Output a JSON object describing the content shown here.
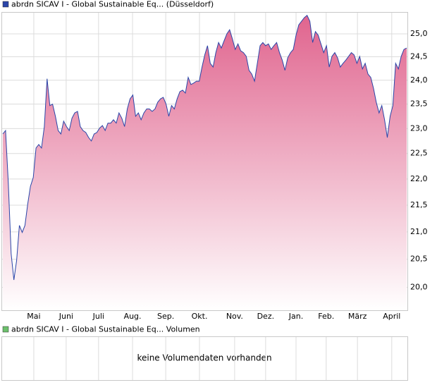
{
  "chart_data": {
    "type": "area",
    "log_scale": true,
    "grid": true,
    "fill_color": "#e0648e",
    "series": [
      {
        "name": "abrdn SICAV I - Global Sustainable Eq... (Düsseldorf)",
        "color": "#2a45a8",
        "values": [
          22.89,
          22.96,
          21.92,
          20.6,
          20.13,
          20.48,
          21.12,
          20.99,
          21.12,
          21.52,
          21.86,
          22.03,
          22.61,
          22.68,
          22.61,
          23.04,
          24.03,
          23.47,
          23.5,
          23.25,
          22.96,
          22.89,
          23.15,
          23.04,
          22.96,
          23.21,
          23.32,
          23.35,
          23.04,
          22.96,
          22.92,
          22.82,
          22.75,
          22.89,
          22.92,
          23.01,
          23.06,
          22.96,
          23.11,
          23.11,
          23.18,
          23.11,
          23.32,
          23.21,
          23.04,
          23.4,
          23.61,
          23.69,
          23.25,
          23.32,
          23.18,
          23.32,
          23.4,
          23.4,
          23.35,
          23.4,
          23.54,
          23.61,
          23.64,
          23.5,
          23.25,
          23.47,
          23.4,
          23.61,
          23.76,
          23.79,
          23.73,
          24.06,
          23.91,
          23.94,
          23.98,
          23.98,
          24.28,
          24.54,
          24.74,
          24.36,
          24.28,
          24.59,
          24.81,
          24.69,
          24.85,
          25.0,
          25.09,
          24.89,
          24.66,
          24.78,
          24.63,
          24.59,
          24.51,
          24.21,
          24.13,
          23.98,
          24.36,
          24.74,
          24.81,
          24.74,
          24.78,
          24.66,
          24.74,
          24.81,
          24.59,
          24.43,
          24.21,
          24.48,
          24.59,
          24.66,
          24.97,
          25.2,
          25.28,
          25.36,
          25.41,
          25.28,
          24.81,
          25.05,
          24.97,
          24.78,
          24.59,
          24.74,
          24.28,
          24.51,
          24.59,
          24.48,
          24.28,
          24.36,
          24.43,
          24.51,
          24.59,
          24.54,
          24.36,
          24.51,
          24.24,
          24.36,
          24.13,
          24.06,
          23.83,
          23.54,
          23.32,
          23.47,
          23.18,
          22.82,
          23.25,
          23.47,
          24.36,
          24.24,
          24.51,
          24.66,
          24.69
        ]
      }
    ],
    "xlim": [
      0,
      146
    ],
    "xticks": [
      {
        "value": 11.2,
        "label": "Mai"
      },
      {
        "value": 22.9,
        "label": "Juni"
      },
      {
        "value": 34.6,
        "label": "Juli"
      },
      {
        "value": 46.9,
        "label": "Aug."
      },
      {
        "value": 58.9,
        "label": "Sep."
      },
      {
        "value": 71.1,
        "label": "Okt."
      },
      {
        "value": 83.8,
        "label": "Nov."
      },
      {
        "value": 95.0,
        "label": "Dez."
      },
      {
        "value": 106.0,
        "label": "Jan."
      },
      {
        "value": 116.9,
        "label": "Feb."
      },
      {
        "value": 128.2,
        "label": "März"
      },
      {
        "value": 140.6,
        "label": "April"
      }
    ],
    "ylim": [
      19.6,
      25.47
    ],
    "yticks": [
      {
        "value": 20,
        "label": "20,0"
      },
      {
        "value": 20.5,
        "label": "20,5"
      },
      {
        "value": 21,
        "label": "21,0"
      },
      {
        "value": 21.5,
        "label": "21,5"
      },
      {
        "value": 22,
        "label": "22,0"
      },
      {
        "value": 22.5,
        "label": "22,5"
      },
      {
        "value": 23,
        "label": "23,0"
      },
      {
        "value": 23.5,
        "label": "23,5"
      },
      {
        "value": 24,
        "label": "24,0"
      },
      {
        "value": 24.5,
        "label": "24,5"
      },
      {
        "value": 25,
        "label": "25,0"
      }
    ],
    "volume": {
      "legend": "abrdn SICAV I - Global Sustainable Eq... Volumen",
      "color": "#6cc06c",
      "message": "keine Volumendaten vorhanden"
    }
  }
}
